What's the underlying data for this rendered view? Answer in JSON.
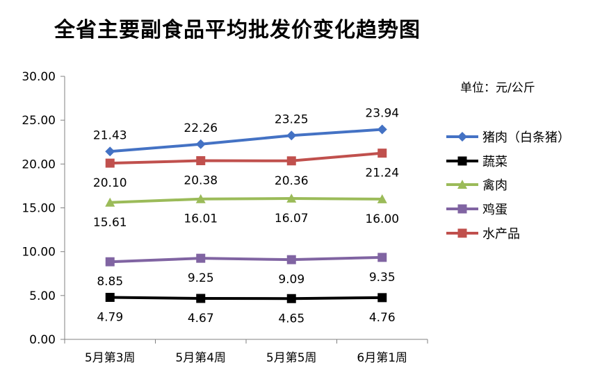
{
  "chart_data": {
    "type": "line",
    "title": "全省主要副食品平均批发价变化趋势图",
    "unit_note": "单位：元/公斤",
    "categories": [
      "5月第3周",
      "5月第4周",
      "5月第5周",
      "6月第1周"
    ],
    "ylim": [
      0,
      30
    ],
    "yticks": [
      "0.00",
      "5.00",
      "10.00",
      "15.00",
      "20.00",
      "25.00",
      "30.00"
    ],
    "grid": false,
    "legend_position": "right",
    "series": [
      {
        "name": "猪肉（白条猪）",
        "color": "#4472C4",
        "marker": "diamond",
        "values": [
          21.43,
          22.26,
          23.25,
          23.94
        ],
        "labels": [
          "21.43",
          "22.26",
          "23.25",
          "23.94"
        ],
        "label_side": "above"
      },
      {
        "name": "蔬菜",
        "color": "#000000",
        "marker": "square",
        "values": [
          4.79,
          4.67,
          4.65,
          4.76
        ],
        "labels": [
          "4.79",
          "4.67",
          "4.65",
          "4.76"
        ],
        "label_side": "below"
      },
      {
        "name": "禽肉",
        "color": "#9BBB59",
        "marker": "triangle",
        "values": [
          15.61,
          16.01,
          16.07,
          16.0
        ],
        "labels": [
          "15.61",
          "16.01",
          "16.07",
          "16.00"
        ],
        "label_side": "below"
      },
      {
        "name": "鸡蛋",
        "color": "#8064A2",
        "marker": "square",
        "values": [
          8.85,
          9.25,
          9.09,
          9.35
        ],
        "labels": [
          "8.85",
          "9.25",
          "9.09",
          "9.35"
        ],
        "label_side": "below"
      },
      {
        "name": "水产品",
        "color": "#C0504D",
        "marker": "square",
        "values": [
          20.1,
          20.38,
          20.36,
          21.24
        ],
        "labels": [
          "20.10",
          "20.38",
          "20.36",
          "21.24"
        ],
        "label_side": "below"
      }
    ]
  }
}
